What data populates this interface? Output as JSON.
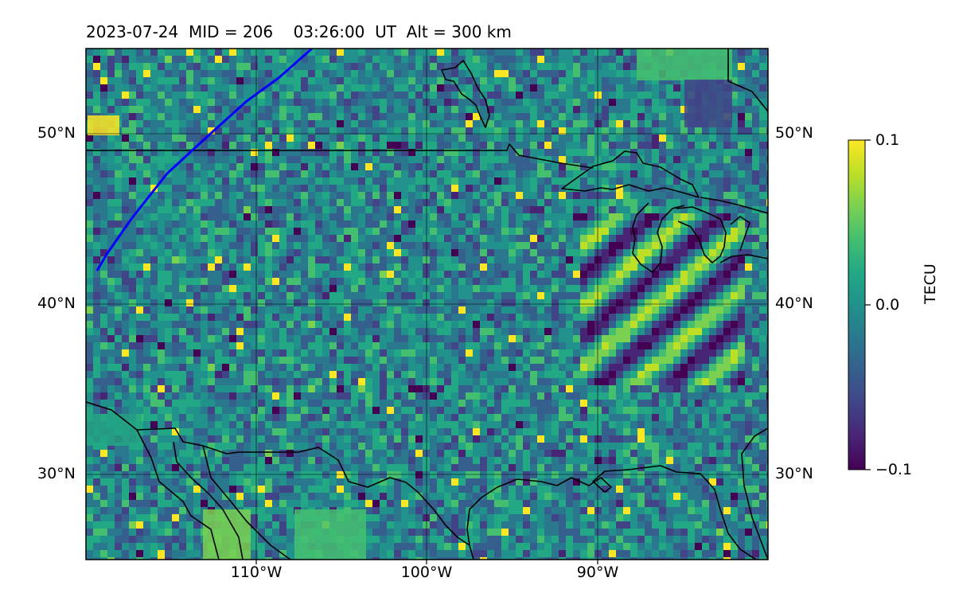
{
  "title": "2023-07-24  MID = 206    03:26:00  UT  Alt = 300 km",
  "colormap": "viridis",
  "colorbar": {
    "label": "TECU",
    "max_label": "0.1",
    "mid_label": "0.0",
    "min_label": "−0.1",
    "range": [
      -0.1,
      0.1
    ]
  },
  "lat_labels": {
    "lat50": "50°N",
    "lat40": "40°N",
    "lat30": "30°N"
  },
  "lon_labels": {
    "lon110": "110°W",
    "lon100": "100°W",
    "lon90": "90°W"
  },
  "map": {
    "lon_range": [
      -120,
      -80
    ],
    "lat_range": [
      25,
      55
    ],
    "gridlines": "on",
    "track_color": "#0000ff",
    "coastline_color": "#000000"
  }
}
